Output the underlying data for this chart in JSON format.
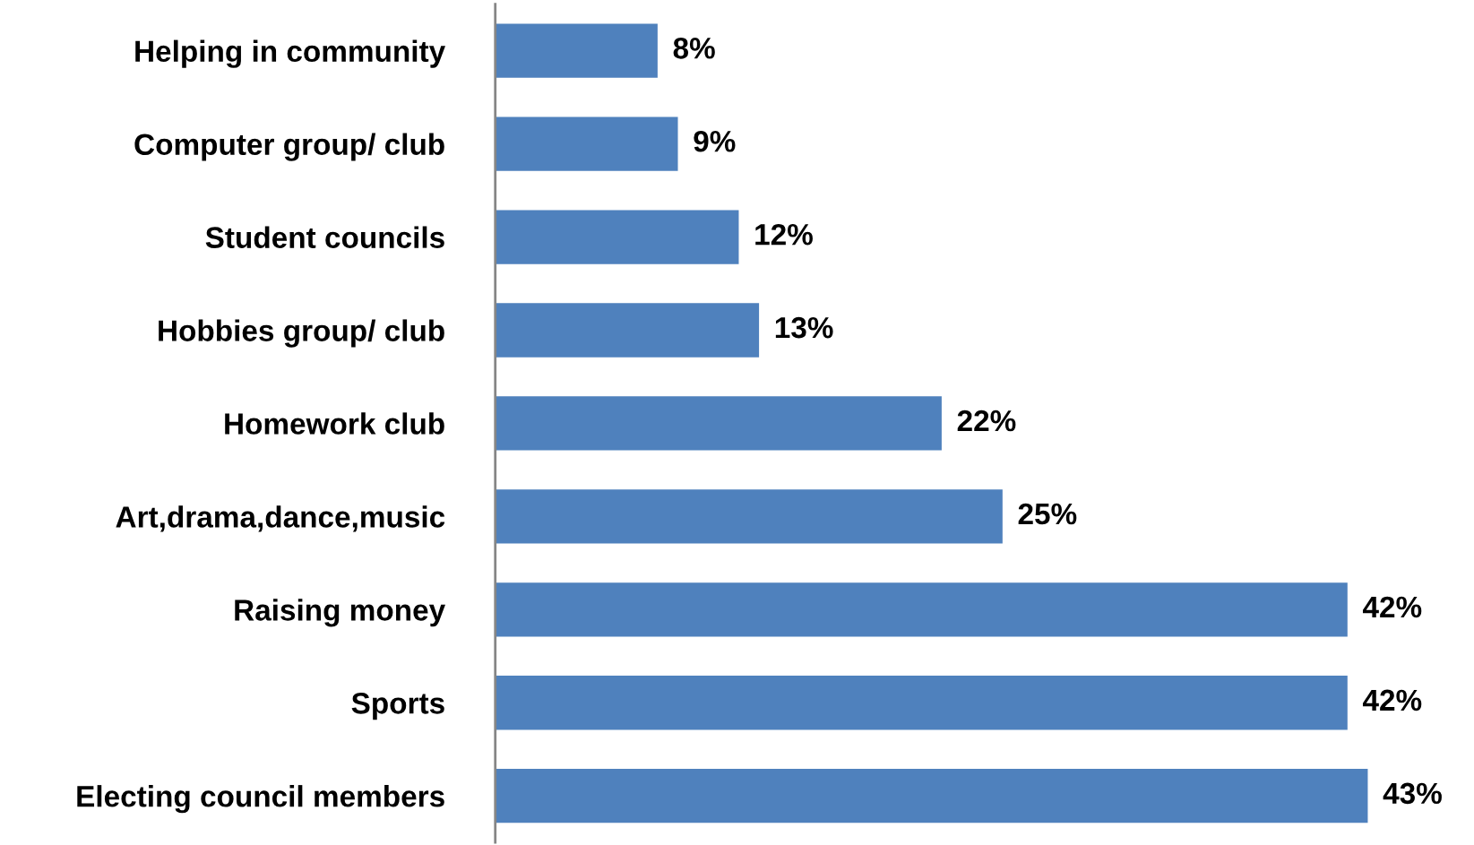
{
  "chart_data": {
    "type": "bar",
    "orientation": "horizontal",
    "categories": [
      "Helping in community",
      "Computer group/ club",
      "Student councils",
      "Hobbies group/ club",
      "Homework club",
      "Art,drama,dance,music",
      "Raising money",
      "Sports",
      "Electing council members"
    ],
    "values": [
      8,
      9,
      12,
      13,
      22,
      25,
      42,
      42,
      43
    ],
    "color": "#4f81bd",
    "data_labels": true,
    "value_labels": [
      "8%",
      "9%",
      "12%",
      "13%",
      "22%",
      "25%",
      "42%",
      "42%",
      "43%"
    ],
    "grid": false,
    "legend": false
  }
}
